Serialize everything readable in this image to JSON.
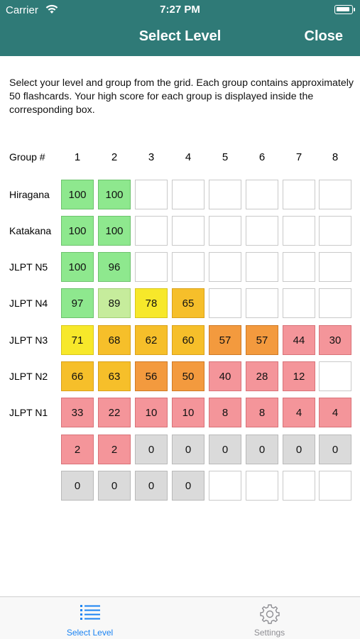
{
  "status_bar": {
    "carrier": "Carrier",
    "time": "7:27 PM"
  },
  "nav": {
    "title": "Select Level",
    "close_label": "Close"
  },
  "instructions": "Select your level and group from the grid. Each group contains approximately 50 flashcards. Your high score for each group is displayed inside the corresponding box.",
  "grid": {
    "corner_label": "Group #",
    "columns": [
      "1",
      "2",
      "3",
      "4",
      "5",
      "6",
      "7",
      "8"
    ],
    "rows": [
      {
        "label": "Hiragana",
        "cells": [
          "100",
          "100",
          "",
          "",
          "",
          "",
          "",
          ""
        ]
      },
      {
        "label": "Katakana",
        "cells": [
          "100",
          "100",
          "",
          "",
          "",
          "",
          "",
          ""
        ]
      },
      {
        "label": "JLPT N5",
        "cells": [
          "100",
          "96",
          "",
          "",
          "",
          "",
          "",
          ""
        ]
      },
      {
        "label": "JLPT N4",
        "cells": [
          "97",
          "89",
          "78",
          "65",
          "",
          "",
          "",
          ""
        ]
      },
      {
        "label": "JLPT N3",
        "cells": [
          "71",
          "68",
          "62",
          "60",
          "57",
          "57",
          "44",
          "30"
        ]
      },
      {
        "label": "JLPT N2",
        "cells": [
          "66",
          "63",
          "56",
          "50",
          "40",
          "28",
          "12",
          ""
        ]
      },
      {
        "label": "JLPT N1",
        "cells": [
          "33",
          "22",
          "10",
          "10",
          "8",
          "8",
          "4",
          "4"
        ]
      },
      {
        "label": "",
        "cells": [
          "2",
          "2",
          "0",
          "0",
          "0",
          "0",
          "0",
          "0"
        ]
      },
      {
        "label": "",
        "cells": [
          "0",
          "0",
          "0",
          "0",
          "",
          "",
          "",
          ""
        ]
      }
    ],
    "colors": {
      "empty": "#ffffff",
      "zero": "#dadada",
      "green": "#8ee88e",
      "lightgreen": "#c6ec9c",
      "yellow": "#f7e82a",
      "amber": "#f6bf2a",
      "orange": "#f39a3e",
      "red": "#f4959a"
    }
  },
  "tabbar": {
    "active_color": "#1a83f2",
    "inactive_color": "#8e8e93",
    "tabs": [
      {
        "label": "Select Level",
        "icon": "list-icon",
        "active": true
      },
      {
        "label": "Settings",
        "icon": "gear-icon",
        "active": false
      }
    ]
  }
}
